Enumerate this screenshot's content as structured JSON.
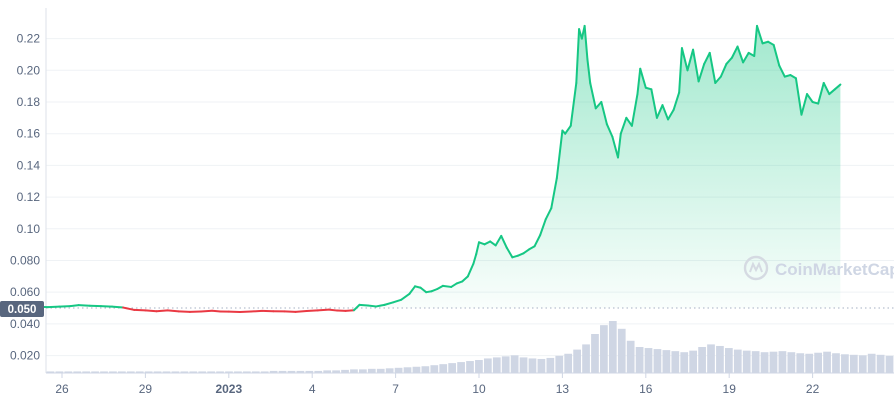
{
  "watermark": "CoinMarketCap",
  "current_price_label": "0.050",
  "colors": {
    "up": "#16c784",
    "down": "#ea3943",
    "volume": "#cfd6e4",
    "grid": "#eff2f5",
    "axis_text": "#58667e",
    "baseline_tag": "#58667e"
  },
  "chart_data": {
    "type": "line",
    "x_tick_labels": [
      "26",
      "29",
      "2023",
      "4",
      "7",
      "10",
      "13",
      "16",
      "19",
      "22"
    ],
    "y_tick_labels": [
      "0.22",
      "0.20",
      "0.18",
      "0.16",
      "0.14",
      "0.12",
      "0.10",
      "0.080",
      "0.060",
      "0.040",
      "0.020"
    ],
    "y_ticks": [
      0.22,
      0.2,
      0.18,
      0.16,
      0.14,
      0.12,
      0.1,
      0.08,
      0.06,
      0.04,
      0.02
    ],
    "ylim": [
      0.009,
      0.233
    ],
    "x_range_days": [
      24.3,
      34.8
    ],
    "reference_price": 0.05,
    "series": [
      {
        "points": [
          [
            24.3,
            0.0495
          ],
          [
            24.7,
            0.0505
          ],
          [
            25.1,
            0.0508
          ],
          [
            25.5,
            0.0506
          ],
          [
            25.9,
            0.0509
          ],
          [
            26.3,
            0.0512
          ],
          [
            26.6,
            0.0518
          ],
          [
            27.0,
            0.0514
          ],
          [
            27.4,
            0.0512
          ],
          [
            27.8,
            0.0509
          ],
          [
            28.2,
            0.0503
          ],
          [
            28.6,
            0.0488
          ],
          [
            29.0,
            0.0485
          ],
          [
            29.4,
            0.048
          ],
          [
            29.8,
            0.0485
          ],
          [
            30.2,
            0.0479
          ],
          [
            30.6,
            0.0476
          ],
          [
            31.0,
            0.0478
          ],
          [
            31.4,
            0.0483
          ],
          [
            31.7,
            0.0478
          ],
          [
            32.0,
            0.0477
          ],
          [
            32.4,
            0.0475
          ],
          [
            32.8,
            0.0478
          ],
          [
            33.2,
            0.0482
          ],
          [
            33.6,
            0.048
          ],
          [
            34.0,
            0.0479
          ],
          [
            34.4,
            0.0476
          ],
          [
            34.8,
            0.0481
          ],
          [
            35.2,
            0.0485
          ],
          [
            35.6,
            0.049
          ],
          [
            35.9,
            0.0484
          ],
          [
            36.2,
            0.0482
          ],
          [
            36.5,
            0.0486
          ],
          [
            36.7,
            0.052
          ],
          [
            37.0,
            0.0516
          ],
          [
            37.3,
            0.051
          ],
          [
            37.6,
            0.052
          ],
          [
            37.9,
            0.0535
          ],
          [
            38.2,
            0.0552
          ],
          [
            38.5,
            0.059
          ],
          [
            38.7,
            0.0637
          ],
          [
            38.9,
            0.0628
          ],
          [
            39.1,
            0.06
          ],
          [
            39.3,
            0.0606
          ],
          [
            39.5,
            0.062
          ],
          [
            39.7,
            0.064
          ],
          [
            40.0,
            0.0633
          ],
          [
            40.2,
            0.0655
          ],
          [
            40.4,
            0.0668
          ],
          [
            40.6,
            0.07
          ],
          [
            40.8,
            0.078
          ],
          [
            40.9,
            0.084
          ],
          [
            41.0,
            0.0915
          ],
          [
            41.2,
            0.0902
          ],
          [
            41.4,
            0.092
          ],
          [
            41.6,
            0.0895
          ],
          [
            41.8,
            0.0955
          ],
          [
            42.0,
            0.088
          ],
          [
            42.2,
            0.082
          ],
          [
            42.4,
            0.083
          ],
          [
            42.6,
            0.0845
          ],
          [
            42.8,
            0.087
          ],
          [
            43.0,
            0.089
          ],
          [
            43.2,
            0.096
          ],
          [
            43.4,
            0.106
          ],
          [
            43.6,
            0.113
          ],
          [
            43.8,
            0.132
          ],
          [
            44.0,
            0.162
          ],
          [
            44.1,
            0.16
          ],
          [
            44.3,
            0.165
          ],
          [
            44.5,
            0.192
          ],
          [
            44.6,
            0.226
          ],
          [
            44.7,
            0.22
          ],
          [
            44.8,
            0.228
          ],
          [
            44.9,
            0.207
          ],
          [
            45.0,
            0.192
          ],
          [
            45.2,
            0.176
          ],
          [
            45.4,
            0.18
          ],
          [
            45.6,
            0.166
          ],
          [
            45.8,
            0.158
          ],
          [
            46.0,
            0.145
          ],
          [
            46.1,
            0.16
          ],
          [
            46.3,
            0.17
          ],
          [
            46.5,
            0.165
          ],
          [
            46.7,
            0.185
          ],
          [
            46.8,
            0.201
          ],
          [
            47.0,
            0.189
          ],
          [
            47.2,
            0.188
          ],
          [
            47.4,
            0.17
          ],
          [
            47.6,
            0.178
          ],
          [
            47.8,
            0.169
          ],
          [
            48.0,
            0.175
          ],
          [
            48.2,
            0.186
          ],
          [
            48.3,
            0.214
          ],
          [
            48.5,
            0.2
          ],
          [
            48.7,
            0.213
          ],
          [
            48.9,
            0.193
          ],
          [
            49.1,
            0.204
          ],
          [
            49.3,
            0.211
          ],
          [
            49.5,
            0.192
          ],
          [
            49.7,
            0.196
          ],
          [
            49.9,
            0.204
          ],
          [
            50.1,
            0.208
          ],
          [
            50.3,
            0.215
          ],
          [
            50.5,
            0.205
          ],
          [
            50.7,
            0.211
          ],
          [
            50.9,
            0.209
          ],
          [
            51.0,
            0.228
          ],
          [
            51.2,
            0.217
          ],
          [
            51.4,
            0.218
          ],
          [
            51.6,
            0.216
          ],
          [
            51.8,
            0.203
          ],
          [
            52.0,
            0.196
          ],
          [
            52.2,
            0.197
          ],
          [
            52.4,
            0.195
          ],
          [
            52.6,
            0.172
          ],
          [
            52.8,
            0.185
          ],
          [
            53.0,
            0.18
          ],
          [
            53.2,
            0.179
          ],
          [
            53.4,
            0.192
          ],
          [
            53.6,
            0.185
          ],
          [
            53.8,
            0.188
          ],
          [
            54.0,
            0.191
          ]
        ]
      }
    ],
    "volume_relative": [
      0.03,
      0.03,
      0.03,
      0.03,
      0.03,
      0.03,
      0.03,
      0.03,
      0.03,
      0.03,
      0.03,
      0.03,
      0.03,
      0.03,
      0.03,
      0.03,
      0.03,
      0.03,
      0.03,
      0.03,
      0.03,
      0.03,
      0.03,
      0.03,
      0.03,
      0.04,
      0.04,
      0.04,
      0.04,
      0.04,
      0.04,
      0.05,
      0.05,
      0.06,
      0.07,
      0.07,
      0.08,
      0.08,
      0.09,
      0.1,
      0.11,
      0.12,
      0.13,
      0.15,
      0.17,
      0.19,
      0.21,
      0.23,
      0.25,
      0.28,
      0.3,
      0.32,
      0.34,
      0.3,
      0.28,
      0.27,
      0.29,
      0.33,
      0.37,
      0.45,
      0.55,
      0.75,
      0.92,
      1.0,
      0.85,
      0.62,
      0.5,
      0.48,
      0.46,
      0.44,
      0.42,
      0.4,
      0.43,
      0.5,
      0.55,
      0.52,
      0.48,
      0.45,
      0.43,
      0.42,
      0.4,
      0.41,
      0.42,
      0.4,
      0.38,
      0.37,
      0.39,
      0.41,
      0.38,
      0.36,
      0.35,
      0.34,
      0.37,
      0.35,
      0.33
    ]
  }
}
